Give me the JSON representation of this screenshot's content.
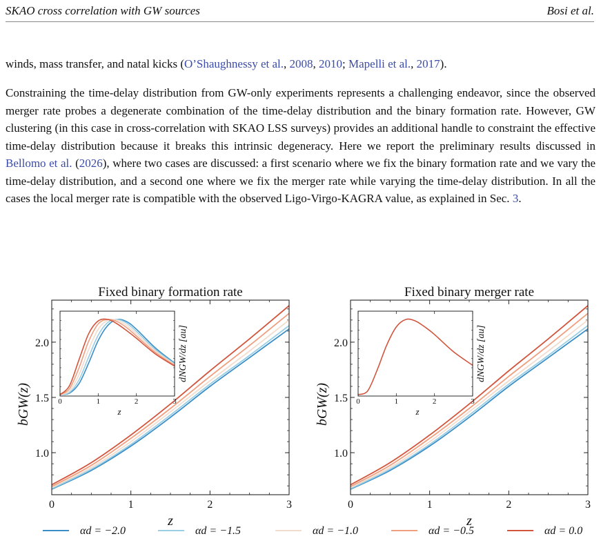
{
  "header": {
    "title": "SKAO cross correlation with GW sources",
    "authors": "Bosi et al."
  },
  "paragraph1": {
    "segments": [
      {
        "text": "winds, mass transfer, and natal kicks (",
        "link": false
      },
      {
        "text": "O’Shaughnessy et al.",
        "link": true
      },
      {
        "text": ", ",
        "link": false
      },
      {
        "text": "2008",
        "link": true
      },
      {
        "text": ", ",
        "link": false
      },
      {
        "text": "2010",
        "link": true
      },
      {
        "text": "; ",
        "link": false
      },
      {
        "text": "Mapelli et al.",
        "link": true
      },
      {
        "text": ", ",
        "link": false
      },
      {
        "text": "2017",
        "link": true
      },
      {
        "text": ").",
        "link": false
      }
    ]
  },
  "paragraph2": {
    "segments": [
      {
        "text": "Constraining the time-delay distribution from GW-only experiments represents a challenging endeavor, since the observed merger rate probes a degenerate combination of the time-delay distribution and the binary formation rate. However, GW clustering (in this case in cross-correlation with SKAO LSS surveys) provides an additional handle to constraint the effective time-delay distribution because it breaks this intrinsic degeneracy. Here we report the preliminary results discussed in ",
        "link": false
      },
      {
        "text": "Bellomo et al.",
        "link": true
      },
      {
        "text": " (",
        "link": false
      },
      {
        "text": "2026",
        "link": true
      },
      {
        "text": "), where two cases are discussed: a first scenario where we fix the binary formation rate and we vary the time-delay distribution, and a second one where we fix the merger rate while varying the time-delay distribution. In all the cases the local merger rate is compatible with the observed Ligo-Virgo-KAGRA value, as explained in Sec. ",
        "link": false
      },
      {
        "text": "3",
        "link": true
      },
      {
        "text": ".",
        "link": false
      }
    ]
  },
  "legend": [
    {
      "label": "αd = −2.0",
      "color": "#3a8ec7"
    },
    {
      "label": "αd = −1.5",
      "color": "#99cde3"
    },
    {
      "label": "αd = −1.0",
      "color": "#f2dccd"
    },
    {
      "label": "αd = −0.5",
      "color": "#ef9f7f"
    },
    {
      "label": "αd = 0.0",
      "color": "#d1553c"
    }
  ],
  "chart_data": [
    {
      "type": "line",
      "title": "Fixed binary formation rate",
      "xlabel": "z",
      "ylabel": "bGW(z)",
      "xlim": [
        0,
        3
      ],
      "ylim": [
        0.62,
        2.38
      ],
      "xticks": [
        "0",
        "1",
        "2",
        "3"
      ],
      "yticks": [
        "1.0",
        "1.5",
        "2.0"
      ],
      "x": [
        0,
        0.5,
        1.0,
        1.5,
        2.0,
        2.5,
        3.0
      ],
      "series": [
        {
          "name": "αd = −2.0",
          "values": [
            0.67,
            0.84,
            1.06,
            1.32,
            1.6,
            1.86,
            2.12
          ]
        },
        {
          "name": "αd = −1.5",
          "values": [
            0.675,
            0.85,
            1.075,
            1.34,
            1.62,
            1.88,
            2.15
          ]
        },
        {
          "name": "αd = −1.0",
          "values": [
            0.685,
            0.865,
            1.1,
            1.37,
            1.65,
            1.92,
            2.2
          ]
        },
        {
          "name": "αd = −0.5",
          "values": [
            0.695,
            0.885,
            1.13,
            1.4,
            1.69,
            1.97,
            2.26
          ]
        },
        {
          "name": "αd = 0.0",
          "values": [
            0.71,
            0.91,
            1.16,
            1.44,
            1.74,
            2.03,
            2.33
          ]
        }
      ],
      "inset": {
        "xlabel": "z",
        "ylabel": "dNGW/dz [au]",
        "xlim": [
          0,
          3
        ],
        "xticks": [
          "0",
          "1",
          "2",
          "3"
        ],
        "x": [
          0,
          0.25,
          0.5,
          0.75,
          1.0,
          1.25,
          1.5,
          1.75,
          2.0,
          2.5,
          3.0
        ],
        "series": [
          {
            "name": "αd = −2.0",
            "values": [
              0.0,
              0.02,
              0.15,
              0.42,
              0.72,
              0.92,
              1.0,
              0.97,
              0.87,
              0.62,
              0.42
            ]
          },
          {
            "name": "αd = −1.5",
            "values": [
              0.0,
              0.03,
              0.2,
              0.5,
              0.79,
              0.96,
              1.0,
              0.95,
              0.84,
              0.6,
              0.41
            ]
          },
          {
            "name": "αd = −1.0",
            "values": [
              0.0,
              0.05,
              0.27,
              0.6,
              0.87,
              0.99,
              0.99,
              0.92,
              0.81,
              0.58,
              0.4
            ]
          },
          {
            "name": "αd = −0.5",
            "values": [
              0.0,
              0.08,
              0.36,
              0.71,
              0.94,
              1.0,
              0.97,
              0.89,
              0.78,
              0.56,
              0.39
            ]
          },
          {
            "name": "αd = 0.0",
            "values": [
              0.0,
              0.12,
              0.47,
              0.81,
              0.98,
              1.0,
              0.94,
              0.85,
              0.75,
              0.54,
              0.38
            ]
          }
        ]
      }
    },
    {
      "type": "line",
      "title": "Fixed binary merger rate",
      "xlabel": "z",
      "ylabel": "bGW(z)",
      "xlim": [
        0,
        3
      ],
      "ylim": [
        0.62,
        2.38
      ],
      "xticks": [
        "0",
        "1",
        "2",
        "3"
      ],
      "yticks": [
        "1.0",
        "1.5",
        "2.0"
      ],
      "x": [
        0,
        0.5,
        1.0,
        1.5,
        2.0,
        2.5,
        3.0
      ],
      "series": [
        {
          "name": "αd = −2.0",
          "values": [
            0.67,
            0.84,
            1.06,
            1.32,
            1.6,
            1.86,
            2.12
          ]
        },
        {
          "name": "αd = −1.5",
          "values": [
            0.675,
            0.85,
            1.075,
            1.34,
            1.62,
            1.88,
            2.15
          ]
        },
        {
          "name": "αd = −1.0",
          "values": [
            0.685,
            0.865,
            1.1,
            1.37,
            1.65,
            1.92,
            2.2
          ]
        },
        {
          "name": "αd = −0.5",
          "values": [
            0.695,
            0.885,
            1.13,
            1.4,
            1.69,
            1.97,
            2.26
          ]
        },
        {
          "name": "αd = 0.0",
          "values": [
            0.71,
            0.91,
            1.16,
            1.44,
            1.74,
            2.03,
            2.33
          ]
        }
      ],
      "inset": {
        "xlabel": "z",
        "ylabel": "dNGW/dz [au]",
        "xlim": [
          0,
          3
        ],
        "xticks": [
          "0",
          "1",
          "2",
          "3"
        ],
        "x": [
          0,
          0.25,
          0.5,
          0.75,
          1.0,
          1.25,
          1.5,
          1.75,
          2.0,
          2.5,
          3.0
        ],
        "series": [
          {
            "name": "αd = 0.0",
            "values": [
              0.0,
              0.05,
              0.33,
              0.66,
              0.9,
              1.0,
              0.98,
              0.9,
              0.8,
              0.57,
              0.39
            ]
          }
        ]
      }
    }
  ]
}
